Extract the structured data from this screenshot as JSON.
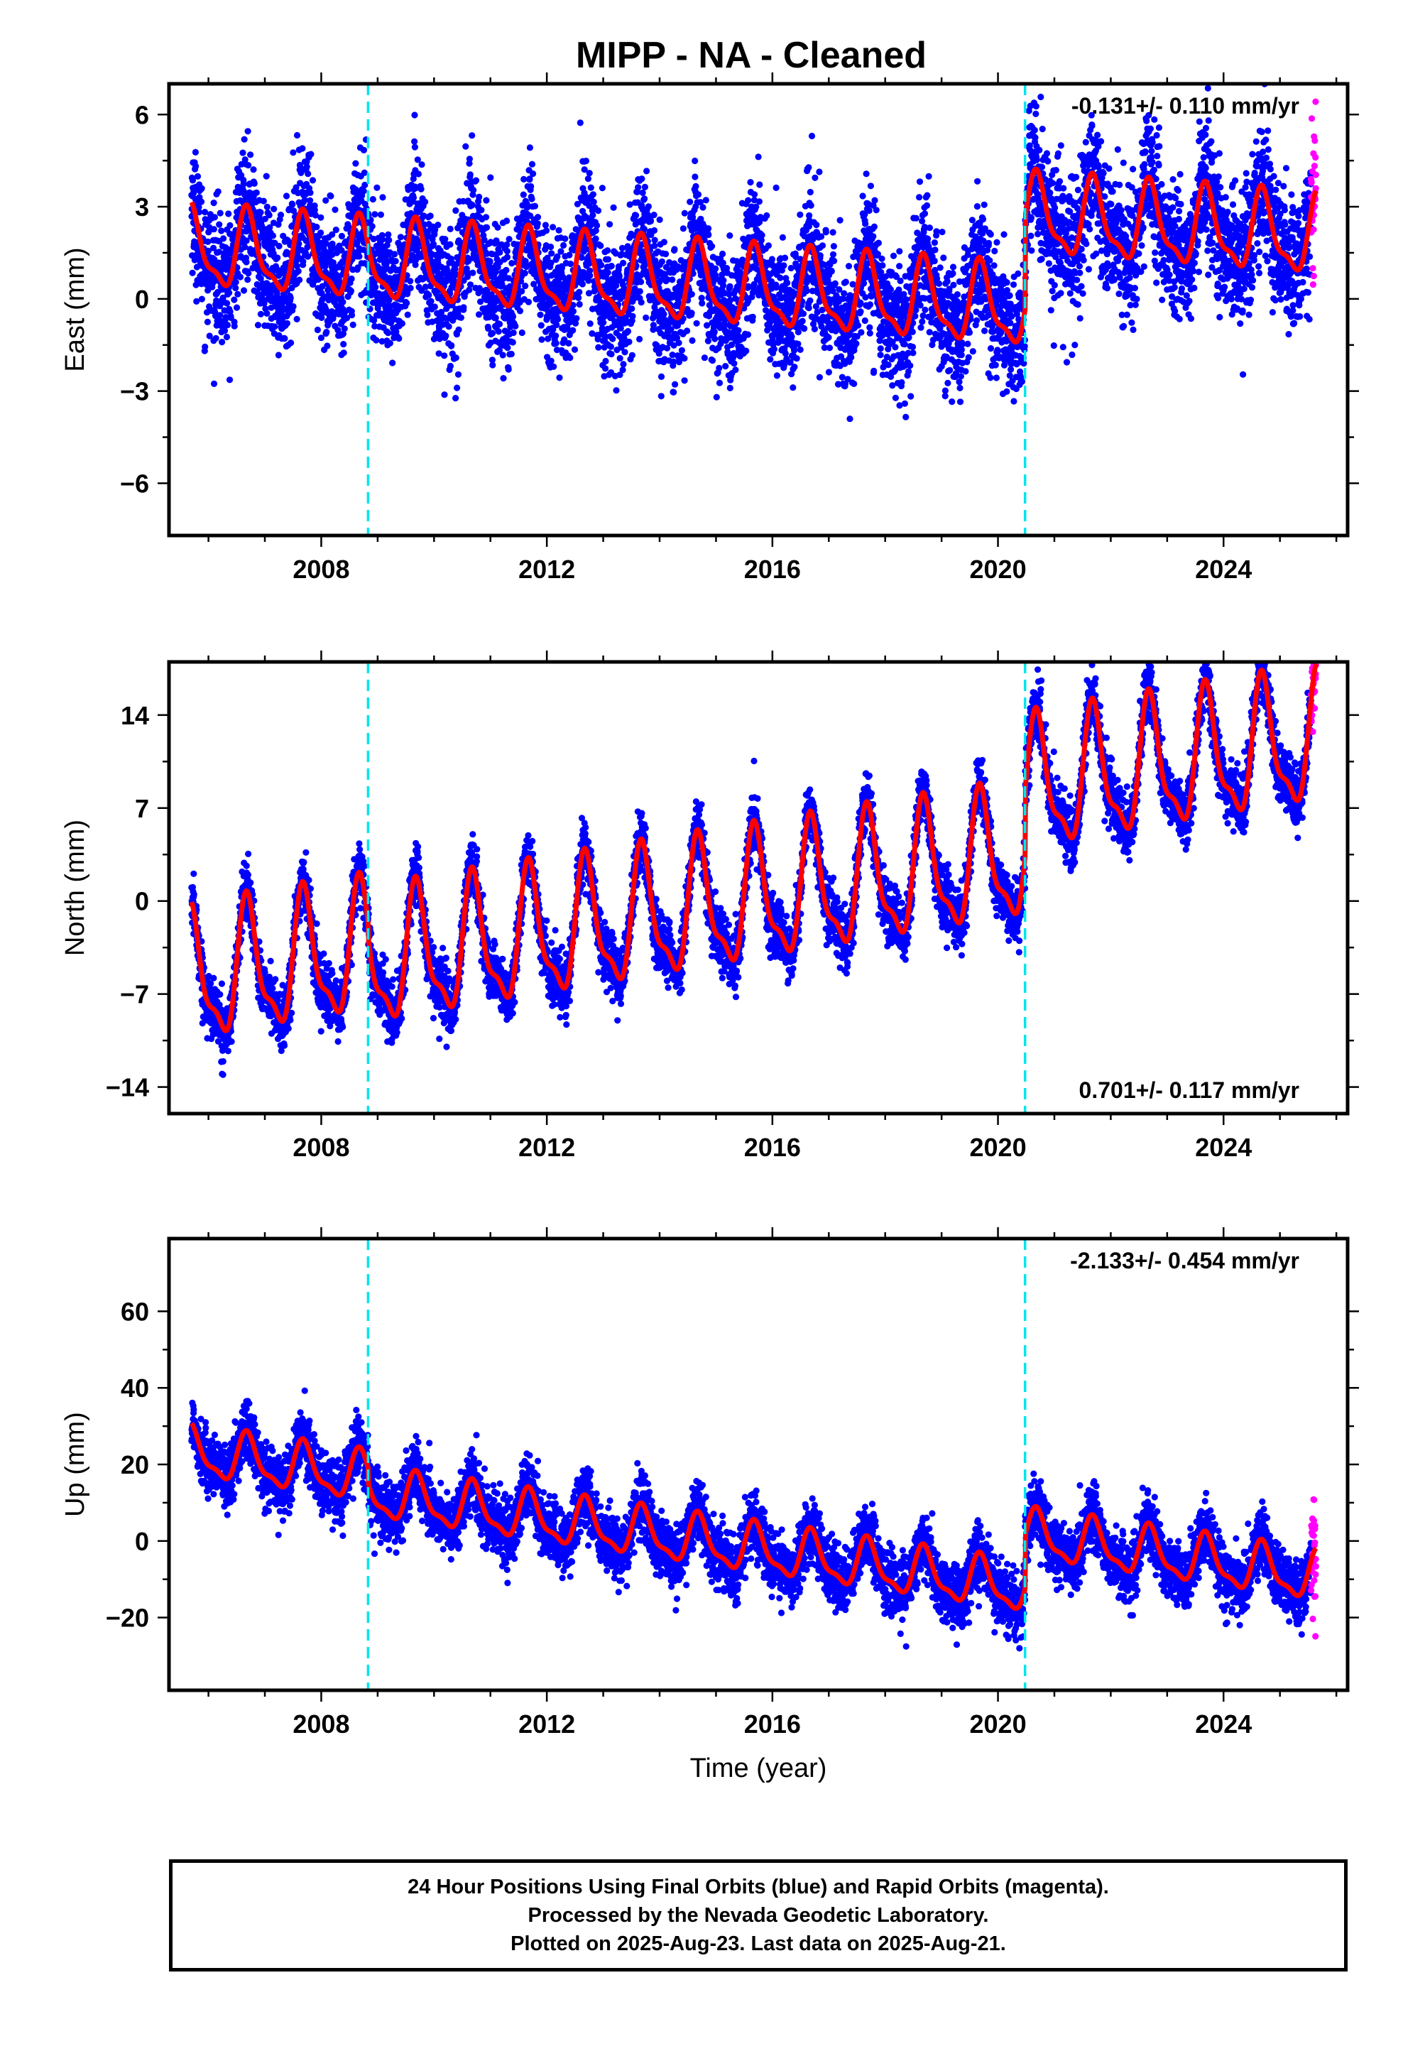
{
  "title": "MIPP  - NA - Cleaned",
  "colors": {
    "final_orbits": "#0000ff",
    "rapid_orbits": "#ff00ff",
    "model_fit": "#ff0000",
    "equipment_change": "#00e5ee",
    "axes": "#000000"
  },
  "footer": {
    "line1": "24 Hour Positions Using Final Orbits (blue) and Rapid Orbits (magenta).",
    "line2": "Processed by the Nevada Geodetic Laboratory.",
    "line3": "Plotted on 2025-Aug-23. Last data on 2025-Aug-21."
  },
  "chart_data": [
    {
      "type": "scatter",
      "component": "East",
      "ylabel": "East (mm)",
      "xlabel": "",
      "xlim": [
        2005.3,
        2026.2
      ],
      "ylim": [
        -7.7,
        7.0
      ],
      "xticks": [
        2008,
        2012,
        2016,
        2020,
        2024
      ],
      "xtick_labels": [
        "2008",
        "2012",
        "2016",
        "2020",
        "2024"
      ],
      "yticks": [
        6,
        3,
        0,
        -3,
        -6
      ],
      "ytick_labels": [
        "6",
        "3",
        "0",
        "−3",
        "−6"
      ],
      "rate_label": "-0.131+/- 0.110 mm/yr",
      "rate_label_position": "top-right",
      "equipment_changes": [
        2008.83,
        2020.48
      ],
      "series": [
        {
          "name": "Final Orbits",
          "color": "#0000ff",
          "data_range": [
            2005.7,
            2025.55
          ],
          "noise_std": 1.05
        },
        {
          "name": "Rapid Orbits",
          "color": "#ff00ff",
          "data_range": [
            2025.55,
            2025.64
          ],
          "noise_std": 1.6
        }
      ],
      "model": {
        "rate_mm_per_yr": -0.131,
        "value_at_start": 1.6,
        "annual_amplitude": 1.2,
        "annual_phase_year": 2005.7,
        "offsets": [
          {
            "year": 2008.83,
            "offset": 0.0
          },
          {
            "year": 2020.48,
            "offset": 3.0
          }
        ],
        "x": [
          2005.7,
          2006.5,
          2007.5,
          2008.5,
          2009.5,
          2010.5,
          2011.5,
          2012.5,
          2013.5,
          2014.5,
          2015.5,
          2016.5,
          2017.5,
          2018.5,
          2019.5,
          2020.45,
          2020.55,
          2021.5,
          2022.5,
          2023.5,
          2024.5,
          2025.55
        ],
        "y": [
          3.0,
          2.9,
          2.8,
          2.6,
          1.8,
          1.7,
          1.6,
          1.5,
          1.4,
          1.3,
          1.0,
          1.0,
          1.0,
          0.7,
          0.3,
          -2.2,
          1.9,
          1.7,
          1.5,
          1.4,
          1.3,
          1.1
        ]
      }
    },
    {
      "type": "scatter",
      "component": "North",
      "ylabel": "North (mm)",
      "xlabel": "",
      "xlim": [
        2005.3,
        2026.2
      ],
      "ylim": [
        -16.0,
        18.0
      ],
      "xticks": [
        2008,
        2012,
        2016,
        2020,
        2024
      ],
      "xtick_labels": [
        "2008",
        "2012",
        "2016",
        "2020",
        "2024"
      ],
      "yticks": [
        14,
        7,
        0,
        -7,
        -14
      ],
      "ytick_labels": [
        "14",
        "7",
        "0",
        "−7",
        "−14"
      ],
      "rate_label": "0.701+/- 0.117 mm/yr",
      "rate_label_position": "bottom-right",
      "equipment_changes": [
        2008.83,
        2020.48
      ],
      "series": [
        {
          "name": "Final Orbits",
          "color": "#0000ff",
          "data_range": [
            2005.7,
            2025.55
          ],
          "noise_std": 1.1
        },
        {
          "name": "Rapid Orbits",
          "color": "#ff00ff",
          "data_range": [
            2025.55,
            2025.64
          ],
          "noise_std": 2.2
        }
      ],
      "model": {
        "rate_mm_per_yr": 0.701,
        "value_at_start": -6.0,
        "annual_amplitude": 4.6,
        "annual_phase_year": 2005.7,
        "offsets": [
          {
            "year": 2008.83,
            "offset": -1.0
          },
          {
            "year": 2020.48,
            "offset": 5.0
          }
        ],
        "x": [
          2005.7,
          2006.5,
          2007.5,
          2008.5,
          2009.5,
          2010.5,
          2011.5,
          2012.5,
          2013.5,
          2014.5,
          2015.5,
          2016.5,
          2017.5,
          2018.5,
          2019.5,
          2020.6,
          2021.5,
          2022.5,
          2023.5,
          2024.5,
          2025.55
        ],
        "y": [
          -4.0,
          -2.0,
          -1.3,
          -0.5,
          0.5,
          1.2,
          2.0,
          2.8,
          3.2,
          4.0,
          4.6,
          5.4,
          6.0,
          6.8,
          7.5,
          10.2,
          11.2,
          11.8,
          12.5,
          13.2,
          13.9
        ]
      }
    },
    {
      "type": "scatter",
      "component": "Up",
      "ylabel": "Up (mm)",
      "xlabel": "Time (year)",
      "xlim": [
        2005.3,
        2026.2
      ],
      "ylim": [
        -39.0,
        79.0
      ],
      "xticks": [
        2008,
        2012,
        2016,
        2020,
        2024
      ],
      "xtick_labels": [
        "2008",
        "2012",
        "2016",
        "2020",
        "2024"
      ],
      "yticks": [
        60,
        40,
        20,
        0,
        -20
      ],
      "ytick_labels": [
        "60",
        "40",
        "20",
        "0",
        "−20"
      ],
      "rate_label": "-2.133+/- 0.454 mm/yr",
      "rate_label_position": "top-right",
      "equipment_changes": [
        2008.83,
        2020.48
      ],
      "series": [
        {
          "name": "Final Orbits",
          "color": "#0000ff",
          "data_range": [
            2005.7,
            2025.55
          ],
          "noise_std": 4.0
        },
        {
          "name": "Rapid Orbits",
          "color": "#ff00ff",
          "data_range": [
            2025.55,
            2025.64
          ],
          "noise_std": 8.0
        }
      ],
      "model": {
        "rate_mm_per_yr": -2.133,
        "value_at_start": 23.0,
        "annual_amplitude": 6.0,
        "annual_phase_year": 2005.7,
        "offsets": [
          {
            "year": 2008.83,
            "offset": -4.0
          },
          {
            "year": 2020.48,
            "offset": 14.0
          }
        ],
        "x": [
          2005.7,
          2006.7,
          2007.7,
          2008.7,
          2009.7,
          2010.7,
          2011.7,
          2012.7,
          2013.7,
          2014.7,
          2015.7,
          2016.7,
          2017.7,
          2018.7,
          2019.7,
          2020.45,
          2020.7,
          2021.7,
          2022.7,
          2023.7,
          2024.7,
          2025.55
        ],
        "y": [
          30,
          27,
          25,
          24,
          16,
          14,
          12,
          10,
          8,
          6,
          4,
          2,
          0,
          -2,
          -4,
          -17,
          0,
          -2,
          -4,
          -6,
          -8,
          -18
        ]
      }
    }
  ]
}
